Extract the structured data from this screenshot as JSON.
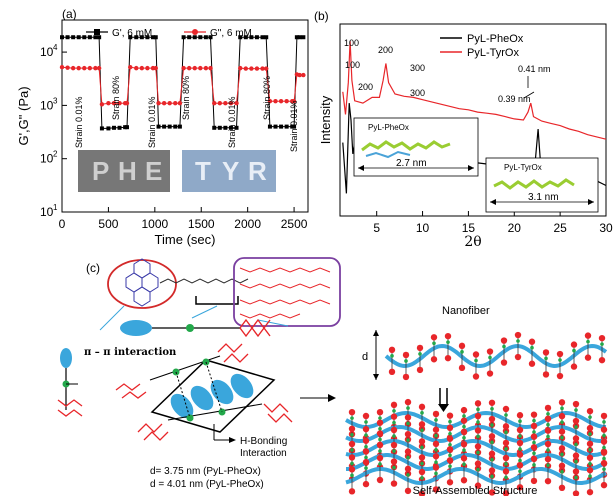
{
  "chart_data": [
    {
      "panel": "(a)",
      "type": "line",
      "xlabel": "Time (sec)",
      "ylabel": "G',G\" (Pa)",
      "xlim": [
        0,
        2650
      ],
      "ylim": [
        10,
        40000
      ],
      "yscale": "log",
      "x_ticks": [
        "0",
        "500",
        "1000",
        "1500",
        "2000",
        "2500"
      ],
      "y_ticks": [
        "10",
        "10",
        "10",
        "10"
      ],
      "y_tick_exponents": [
        "1",
        "2",
        "3",
        "4"
      ],
      "legend_position": "top",
      "series": [
        {
          "name": "G', 6 mM",
          "color": "#000000",
          "marker": "square",
          "points": [
            [
              0,
              19000
            ],
            [
              60,
              19000
            ],
            [
              120,
              19000
            ],
            [
              180,
              19000
            ],
            [
              240,
              19000
            ],
            [
              300,
              19000
            ],
            [
              360,
              19000
            ],
            [
              400,
              19000
            ],
            [
              430,
              370
            ],
            [
              500,
              370
            ],
            [
              560,
              380
            ],
            [
              620,
              380
            ],
            [
              680,
              390
            ],
            [
              700,
              390
            ],
            [
              735,
              19000
            ],
            [
              800,
              19000
            ],
            [
              860,
              19000
            ],
            [
              920,
              19000
            ],
            [
              980,
              19000
            ],
            [
              1010,
              19000
            ],
            [
              1040,
              400
            ],
            [
              1100,
              400
            ],
            [
              1160,
              400
            ],
            [
              1220,
              400
            ],
            [
              1270,
              400
            ],
            [
              1310,
              19000
            ],
            [
              1370,
              19000
            ],
            [
              1430,
              19000
            ],
            [
              1490,
              19000
            ],
            [
              1550,
              19000
            ],
            [
              1600,
              19000
            ],
            [
              1640,
              380
            ],
            [
              1700,
              380
            ],
            [
              1760,
              380
            ],
            [
              1820,
              380
            ],
            [
              1880,
              380
            ],
            [
              1920,
              19000
            ],
            [
              1980,
              19000
            ],
            [
              2040,
              19000
            ],
            [
              2100,
              19000
            ],
            [
              2160,
              19000
            ],
            [
              2200,
              19000
            ],
            [
              2240,
              400
            ],
            [
              2300,
              400
            ],
            [
              2360,
              400
            ],
            [
              2420,
              400
            ],
            [
              2480,
              400
            ],
            [
              2500,
              400
            ],
            [
              2530,
              19000
            ],
            [
              2560,
              19000
            ],
            [
              2600,
              19000
            ]
          ]
        },
        {
          "name": "G\", 6 mM",
          "color": "#e8262a",
          "marker": "circle",
          "points": [
            [
              0,
              5200
            ],
            [
              60,
              5100
            ],
            [
              120,
              5000
            ],
            [
              180,
              5000
            ],
            [
              240,
              5000
            ],
            [
              300,
              5000
            ],
            [
              360,
              5000
            ],
            [
              400,
              5000
            ],
            [
              430,
              1050
            ],
            [
              500,
              1100
            ],
            [
              560,
              1100
            ],
            [
              620,
              1100
            ],
            [
              680,
              1100
            ],
            [
              700,
              1100
            ],
            [
              735,
              5200
            ],
            [
              800,
              5000
            ],
            [
              860,
              5000
            ],
            [
              920,
              5000
            ],
            [
              980,
              5000
            ],
            [
              1010,
              5000
            ],
            [
              1040,
              1100
            ],
            [
              1100,
              1100
            ],
            [
              1160,
              1100
            ],
            [
              1220,
              1100
            ],
            [
              1270,
              1100
            ],
            [
              1310,
              5000
            ],
            [
              1370,
              5000
            ],
            [
              1430,
              5000
            ],
            [
              1490,
              5000
            ],
            [
              1550,
              5000
            ],
            [
              1600,
              5000
            ],
            [
              1640,
              1100
            ],
            [
              1700,
              1100
            ],
            [
              1760,
              1100
            ],
            [
              1820,
              1100
            ],
            [
              1880,
              1100
            ],
            [
              1920,
              5000
            ],
            [
              1980,
              4900
            ],
            [
              2040,
              4900
            ],
            [
              2100,
              4900
            ],
            [
              2160,
              4900
            ],
            [
              2200,
              4900
            ],
            [
              2240,
              1200
            ],
            [
              2300,
              1200
            ],
            [
              2360,
              1200
            ],
            [
              2420,
              1200
            ],
            [
              2480,
              1200
            ],
            [
              2500,
              1200
            ],
            [
              2530,
              3800
            ],
            [
              2560,
              3700
            ],
            [
              2600,
              3700
            ]
          ]
        }
      ],
      "annotations": [
        "Strain 0.01%",
        "Strain 80%",
        "Strain 0.01%",
        "Strain 80%",
        "Strain 0.01%",
        "Strain 80%",
        "Strain 0.01%"
      ],
      "inset_letters": [
        "P",
        "H",
        "E",
        "T",
        "Y",
        "R"
      ]
    },
    {
      "panel": "(b)",
      "type": "line",
      "xlabel": "2θ",
      "ylabel": "Intensity",
      "xlim": [
        1,
        30
      ],
      "x_ticks": [
        "5",
        "10",
        "15",
        "20",
        "25",
        "30"
      ],
      "legend_position": "top-right",
      "series": [
        {
          "name": "PyL-PheOx",
          "color": "#000000",
          "points": [
            [
              1.3,
              105
            ],
            [
              1.7,
              60
            ],
            [
              2.0,
              140
            ],
            [
              2.2,
              125
            ],
            [
              2.4,
              95
            ],
            [
              2.7,
              110
            ],
            [
              3.2,
              100
            ],
            [
              3.6,
              100
            ],
            [
              4.0,
              98
            ],
            [
              4.5,
              108
            ],
            [
              5.2,
              115
            ],
            [
              5.8,
              112
            ],
            [
              6.3,
              102
            ],
            [
              7.0,
              97
            ],
            [
              7.6,
              95
            ],
            [
              8.2,
              92
            ],
            [
              8.7,
              96
            ],
            [
              9.2,
              95
            ],
            [
              10,
              92
            ],
            [
              11,
              91
            ],
            [
              12,
              90
            ],
            [
              13,
              91
            ],
            [
              14,
              90
            ],
            [
              15,
              88
            ],
            [
              16,
              87
            ],
            [
              17,
              86
            ],
            [
              18,
              85
            ],
            [
              19,
              84
            ],
            [
              20,
              82
            ],
            [
              21,
              82
            ],
            [
              21.6,
              82
            ],
            [
              22.3,
              90
            ],
            [
              22.6,
              117
            ],
            [
              22.9,
              82
            ],
            [
              23.5,
              79
            ],
            [
              25,
              77
            ],
            [
              27,
              75
            ],
            [
              28,
              73
            ],
            [
              29,
              71
            ],
            [
              30,
              67
            ]
          ]
        },
        {
          "name": "PyL-TyrOx",
          "color": "#e8262a",
          "points": [
            [
              1.3,
              150
            ],
            [
              1.6,
              130
            ],
            [
              1.9,
              158
            ],
            [
              2.1,
              195
            ],
            [
              2.3,
              160
            ],
            [
              2.6,
              142
            ],
            [
              3.5,
              140
            ],
            [
              4.5,
              145
            ],
            [
              5.3,
              145
            ],
            [
              5.7,
              160
            ],
            [
              6.0,
              175
            ],
            [
              6.3,
              158
            ],
            [
              7.0,
              148
            ],
            [
              8.0,
              146
            ],
            [
              9.0,
              145
            ],
            [
              10,
              143
            ],
            [
              11,
              141
            ],
            [
              12,
              139
            ],
            [
              13,
              137
            ],
            [
              14,
              135
            ],
            [
              15,
              134
            ],
            [
              16,
              132
            ],
            [
              17,
              131
            ],
            [
              18,
              130
            ],
            [
              19,
              128
            ],
            [
              20,
              126
            ],
            [
              21,
              125
            ],
            [
              21.5,
              132
            ],
            [
              21.8,
              140
            ],
            [
              22.1,
              128
            ],
            [
              23,
              124
            ],
            [
              24,
              122
            ],
            [
              25,
              120
            ],
            [
              26,
              117
            ],
            [
              27,
              115
            ],
            [
              28,
              112
            ],
            [
              29,
              110
            ],
            [
              30,
              108
            ]
          ]
        }
      ],
      "peak_labels": [
        "100",
        "200",
        "300",
        "100",
        "200",
        "300",
        "0.41 nm",
        "0.39 nm"
      ],
      "insets": [
        {
          "title": "PyL-PheOx",
          "dimension": "2.7 nm"
        },
        {
          "title": "PyL-TyrOx",
          "dimension": "3.1 nm"
        }
      ]
    }
  ],
  "panel_c": {
    "label": "(c)",
    "pi_label": "π – π interaction",
    "hbond_label_line1": "H-Bonding",
    "hbond_label_line2": "Interaction",
    "d_symbol": "d",
    "d_values": [
      "d= 3.75 nm (PyL-PheOx)",
      "d = 4.01 nm (PyL-PheOx)"
    ],
    "nanofiber_label": "Nanofiber",
    "assembled_label": "Self-Assembled Structure",
    "colors": {
      "blue": "#3aa6dc",
      "red": "#e8262a",
      "green": "#22a84a",
      "purple": "#7a3fa0"
    }
  }
}
